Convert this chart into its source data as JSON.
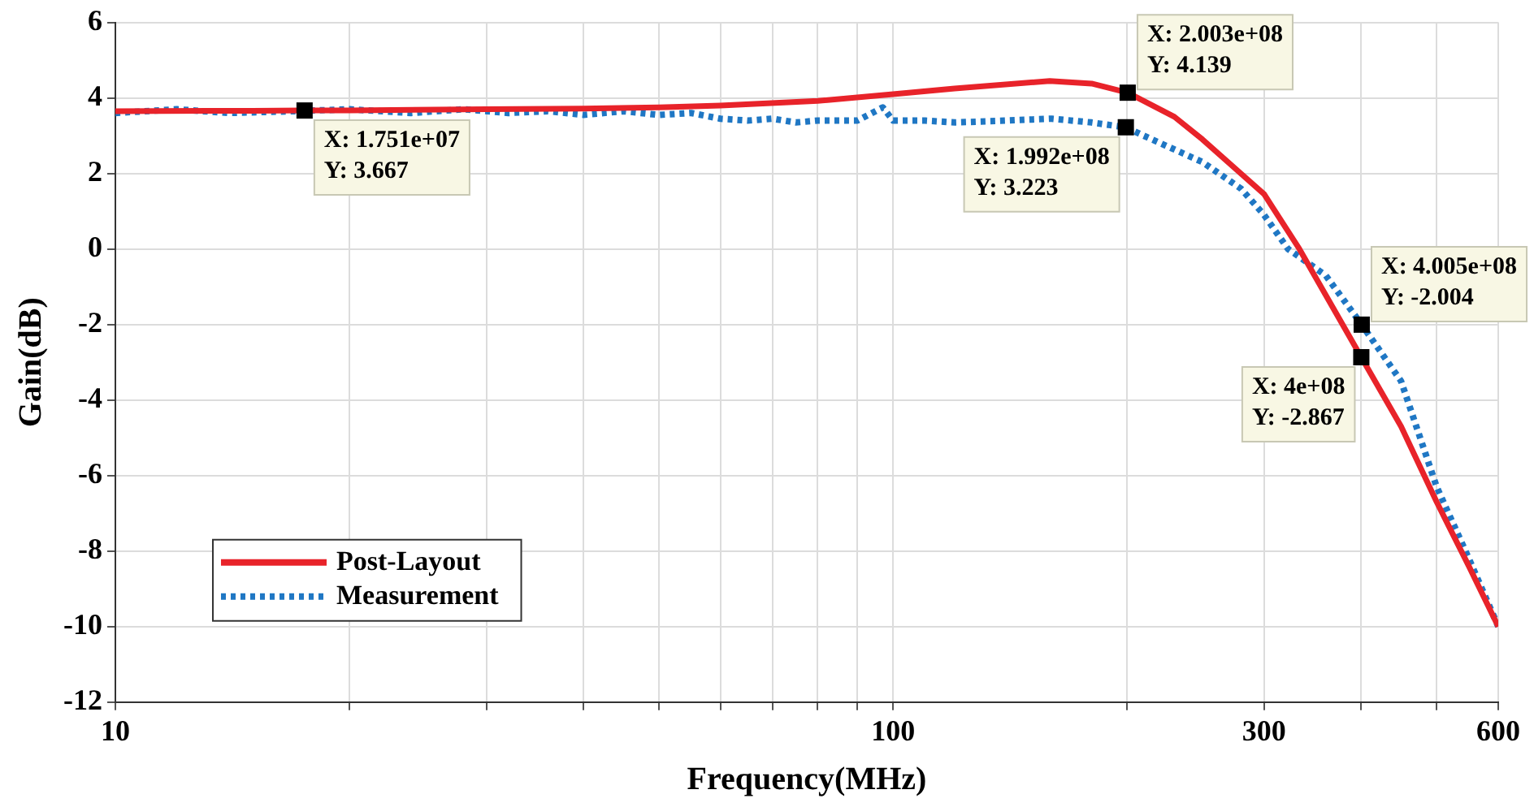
{
  "chart_data": {
    "type": "line",
    "xlabel": "Frequency(MHz)",
    "ylabel": "Gain(dB)",
    "log": "x",
    "grid": true,
    "legend": "bottom left",
    "xlim": [
      10,
      600
    ],
    "ylim": [
      -12,
      6
    ],
    "xticks": [
      10,
      {
        "value": 20,
        "label": null
      },
      {
        "value": 30,
        "label": null
      },
      {
        "value": 40,
        "label": null
      },
      {
        "value": 50,
        "label": null
      },
      {
        "value": 60,
        "label": null
      },
      {
        "value": 70,
        "label": null
      },
      {
        "value": 80,
        "label": null
      },
      {
        "value": 90,
        "label": null
      },
      100,
      {
        "value": 200,
        "label": null
      },
      300,
      {
        "value": 400,
        "label": null
      },
      {
        "value": 500,
        "label": null
      },
      600
    ],
    "yticks": [
      -12,
      -10,
      -8,
      -6,
      -4,
      -2,
      0,
      2,
      4,
      6
    ],
    "series": [
      {
        "name": "Post-Layout",
        "color": "#e8232a",
        "line_style": "solid",
        "x": [
          10,
          15,
          17.51,
          20,
          30,
          40,
          50,
          60,
          80,
          100,
          120,
          159,
          180,
          200.3,
          230,
          250,
          300,
          333,
          400,
          450,
          500,
          550,
          600
        ],
        "values": [
          3.65,
          3.66,
          3.667,
          3.67,
          3.7,
          3.72,
          3.75,
          3.8,
          3.92,
          4.1,
          4.25,
          4.45,
          4.38,
          4.139,
          3.5,
          2.9,
          1.45,
          0,
          -2.867,
          -4.7,
          -6.7,
          -8.4,
          -10
        ]
      },
      {
        "name": "Measurement",
        "color": "#1f77c4",
        "line_style": "dotted",
        "x": [
          10,
          12,
          14,
          17,
          20,
          24,
          28,
          32,
          36,
          40,
          45,
          50,
          55,
          60,
          65,
          70,
          75,
          80,
          90,
          97,
          100,
          110,
          120,
          140,
          160,
          180,
          199.2,
          210,
          250,
          280,
          300,
          322,
          360,
          400.5,
          450,
          500,
          550,
          600
        ],
        "values": [
          3.6,
          3.7,
          3.6,
          3.65,
          3.7,
          3.6,
          3.7,
          3.6,
          3.65,
          3.55,
          3.65,
          3.55,
          3.6,
          3.45,
          3.4,
          3.45,
          3.35,
          3.4,
          3.4,
          3.75,
          3.4,
          3.4,
          3.35,
          3.4,
          3.45,
          3.35,
          3.223,
          3.0,
          2.3,
          1.6,
          0.9,
          0,
          -0.7,
          -2.004,
          -3.5,
          -6.3,
          -8.2,
          -10
        ]
      }
    ],
    "annotations": [
      {
        "text": "X: 1.751e+07\nY: 3.667",
        "x": 17.51,
        "y": 3.667
      },
      {
        "text": "X: 2.003e+08\nY: 4.139",
        "x": 200.3,
        "y": 4.139
      },
      {
        "text": "X: 1.992e+08\nY: 3.223",
        "x": 199.2,
        "y": 3.223
      },
      {
        "text": "X: 4.005e+08\nY: -2.004",
        "x": 400.5,
        "y": -2.004
      },
      {
        "text": "X: 4e+08\nY: -2.867",
        "x": 400,
        "y": -2.867
      }
    ]
  }
}
